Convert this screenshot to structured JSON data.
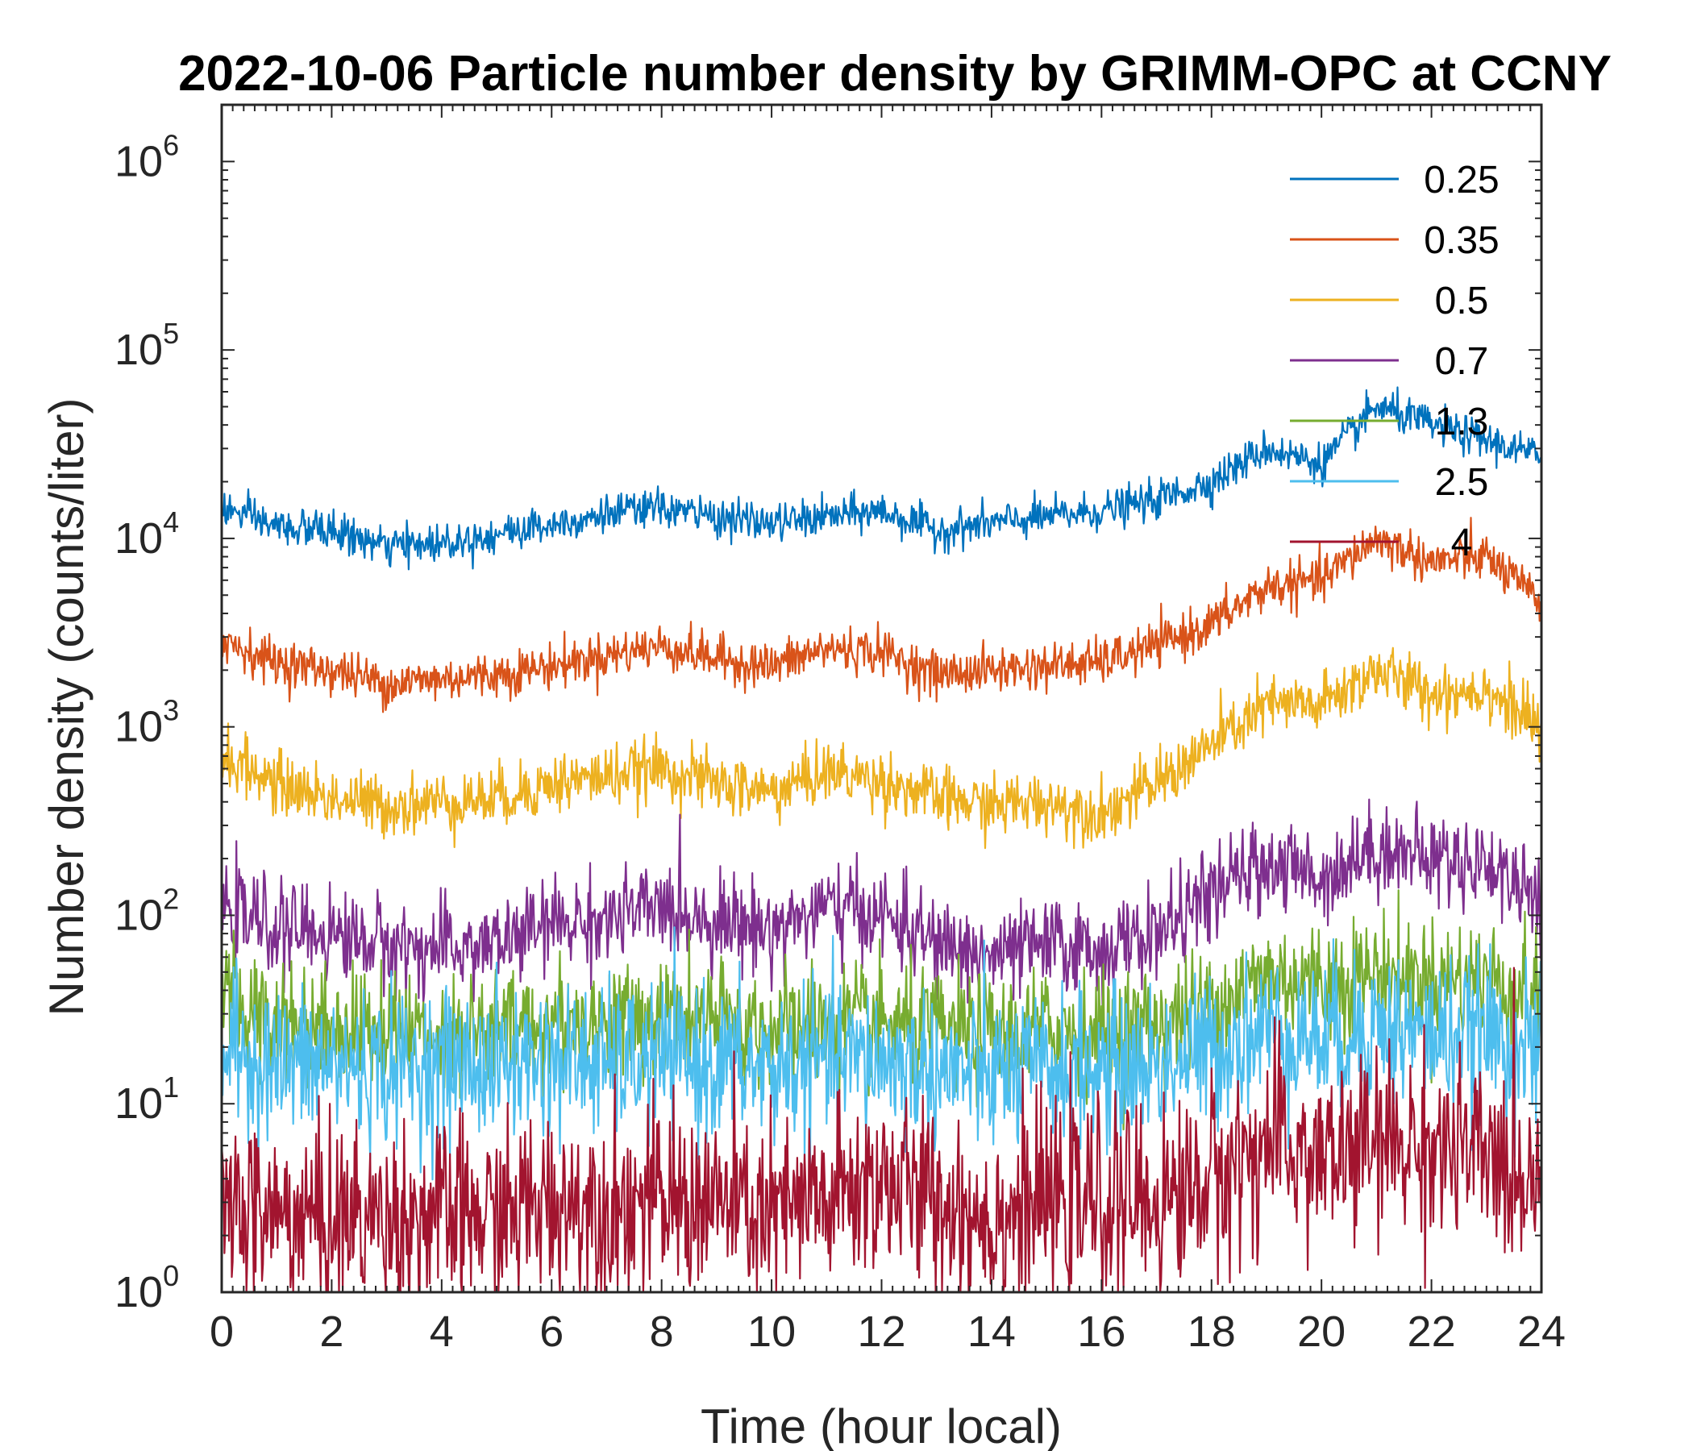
{
  "chart_data": {
    "type": "line",
    "title": "2022-10-06 Particle number density by GRIMM-OPC at CCNY",
    "xlabel": "Time (hour local)",
    "ylabel": "Number density (counts/liter)",
    "x_scale": "linear",
    "y_scale": "log",
    "xlim": [
      0,
      24
    ],
    "ylim": [
      1,
      2000000
    ],
    "x_ticks": [
      0,
      2,
      4,
      6,
      8,
      10,
      12,
      14,
      16,
      18,
      20,
      22,
      24
    ],
    "x_tick_labels": [
      "0",
      "2",
      "4",
      "6",
      "8",
      "10",
      "12",
      "14",
      "16",
      "18",
      "20",
      "22",
      "24"
    ],
    "y_ticks": [
      1,
      10,
      100,
      1000,
      10000,
      100000,
      1000000
    ],
    "y_tick_labels": [
      {
        "base": "10",
        "exp": "0"
      },
      {
        "base": "10",
        "exp": "1"
      },
      {
        "base": "10",
        "exp": "2"
      },
      {
        "base": "10",
        "exp": "3"
      },
      {
        "base": "10",
        "exp": "4"
      },
      {
        "base": "10",
        "exp": "5"
      },
      {
        "base": "10",
        "exp": "6"
      }
    ],
    "legend_position": "top-right",
    "x": [
      0,
      1,
      2,
      3,
      4,
      5,
      6,
      7,
      8,
      9,
      10,
      11,
      12,
      13,
      14,
      15,
      16,
      17,
      18,
      19,
      20,
      21,
      22,
      23,
      24
    ],
    "series": [
      {
        "name": "0.25",
        "color": "#0072BD",
        "noise": 0.05,
        "values": [
          14500,
          11500,
          11000,
          9000,
          9500,
          10500,
          12000,
          13500,
          14500,
          13000,
          12000,
          13000,
          14000,
          11000,
          12000,
          13000,
          14000,
          16000,
          20000,
          30000,
          25000,
          50000,
          40000,
          33000,
          27000
        ]
      },
      {
        "name": "0.35",
        "color": "#D95319",
        "noise": 0.06,
        "values": [
          2900,
          2200,
          2000,
          1700,
          1800,
          1900,
          2100,
          2400,
          2700,
          2300,
          2100,
          2600,
          2500,
          1900,
          2000,
          2100,
          2200,
          2700,
          3500,
          5500,
          6000,
          10000,
          7500,
          8000,
          4500
        ]
      },
      {
        "name": "0.5",
        "color": "#EDB120",
        "noise": 0.08,
        "values": [
          700,
          500,
          420,
          380,
          400,
          420,
          500,
          550,
          600,
          500,
          450,
          580,
          520,
          420,
          380,
          400,
          350,
          500,
          800,
          1300,
          1300,
          2000,
          1500,
          1600,
          950
        ]
      },
      {
        "name": "0.7",
        "color": "#7E2F8E",
        "noise": 0.12,
        "values": [
          110,
          85,
          80,
          70,
          65,
          70,
          90,
          95,
          110,
          95,
          85,
          110,
          100,
          70,
          60,
          70,
          65,
          80,
          130,
          190,
          160,
          230,
          200,
          190,
          125
        ]
      },
      {
        "name": "1.3",
        "color": "#77AC30",
        "noise": 0.16,
        "values": [
          35,
          28,
          26,
          24,
          24,
          24,
          27,
          27,
          28,
          27,
          25,
          27,
          26,
          24,
          23,
          25,
          24,
          26,
          33,
          48,
          45,
          50,
          45,
          47,
          35
        ]
      },
      {
        "name": "2.5",
        "color": "#4DBEEE",
        "noise": 0.2,
        "values": [
          20,
          16,
          16,
          15,
          16,
          16,
          17,
          16,
          17,
          16,
          15,
          17,
          17,
          15,
          14,
          15,
          15,
          16,
          19,
          25,
          22,
          26,
          23,
          23,
          18
        ]
      },
      {
        "name": "4",
        "color": "#A2142F",
        "noise": 0.25,
        "values": [
          3,
          2.5,
          2.5,
          2.5,
          2.5,
          2.5,
          3,
          3,
          3,
          3,
          2.5,
          3,
          4,
          3,
          2.5,
          3,
          3,
          3,
          4,
          6,
          5,
          6,
          6,
          5,
          4
        ]
      }
    ]
  }
}
